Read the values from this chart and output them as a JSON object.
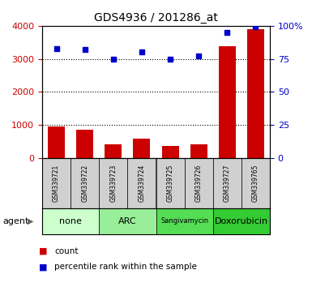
{
  "title": "GDS4936 / 201286_at",
  "samples": [
    "GSM339721",
    "GSM339722",
    "GSM339723",
    "GSM339724",
    "GSM339725",
    "GSM339726",
    "GSM339727",
    "GSM339765"
  ],
  "counts": [
    950,
    850,
    400,
    570,
    370,
    420,
    3380,
    3900
  ],
  "percentiles": [
    83,
    82,
    75,
    80,
    75,
    77,
    95,
    99
  ],
  "agents": [
    {
      "label": "none",
      "span": [
        0,
        2
      ],
      "color": "#ccffcc"
    },
    {
      "label": "ARC",
      "span": [
        2,
        4
      ],
      "color": "#99ee99"
    },
    {
      "label": "Sangivamycin",
      "span": [
        4,
        6
      ],
      "color": "#55dd55"
    },
    {
      "label": "Doxorubicin",
      "span": [
        6,
        8
      ],
      "color": "#33cc33"
    }
  ],
  "ylim_left": [
    0,
    4000
  ],
  "ylim_right": [
    0,
    100
  ],
  "yticks_left": [
    0,
    1000,
    2000,
    3000,
    4000
  ],
  "yticks_right": [
    0,
    25,
    50,
    75,
    100
  ],
  "ytick_labels_right": [
    "0",
    "25",
    "50",
    "75",
    "100%"
  ],
  "bar_color": "#cc0000",
  "dot_color": "#0000cc",
  "left_tick_color": "#cc0000",
  "right_tick_color": "#0000cc",
  "sample_bg": "#d0d0d0",
  "gridline_ticks": [
    1000,
    2000,
    3000
  ]
}
